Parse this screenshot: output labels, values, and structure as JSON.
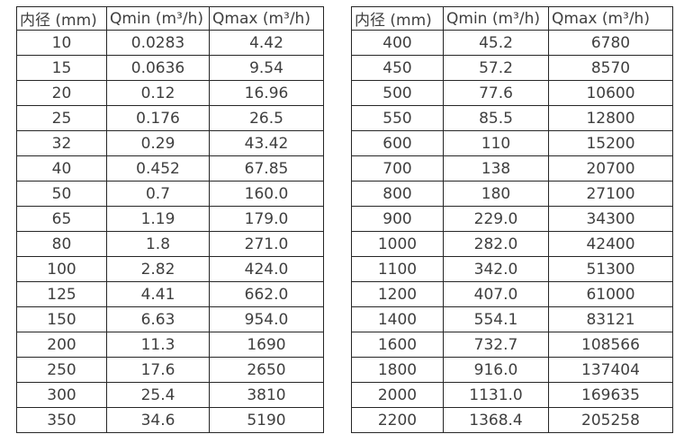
{
  "page": {
    "background": "#ffffff",
    "text_color": "#3f3f3f",
    "border_color": "#262626"
  },
  "tables": [
    {
      "name": "flow-table-small-diameters",
      "headers": [
        "内径 (mm)",
        "Qmin (m³/h)",
        "Qmax (m³/h)"
      ],
      "rows": [
        [
          "10",
          "0.0283",
          "4.42"
        ],
        [
          "15",
          "0.0636",
          "9.54"
        ],
        [
          "20",
          "0.12",
          "16.96"
        ],
        [
          "25",
          "0.176",
          "26.5"
        ],
        [
          "32",
          "0.29",
          "43.42"
        ],
        [
          "40",
          "0.452",
          "67.85"
        ],
        [
          "50",
          "0.7",
          "160.0"
        ],
        [
          "65",
          "1.19",
          "179.0"
        ],
        [
          "80",
          "1.8",
          "271.0"
        ],
        [
          "100",
          "2.82",
          "424.0"
        ],
        [
          "125",
          "4.41",
          "662.0"
        ],
        [
          "150",
          "6.63",
          "954.0"
        ],
        [
          "200",
          "11.3",
          "1690"
        ],
        [
          "250",
          "17.6",
          "2650"
        ],
        [
          "300",
          "25.4",
          "3810"
        ],
        [
          "350",
          "34.6",
          "5190"
        ]
      ]
    },
    {
      "name": "flow-table-large-diameters",
      "headers": [
        "内径 (mm)",
        "Qmin (m³/h)",
        "Qmax (m³/h)"
      ],
      "rows": [
        [
          "400",
          "45.2",
          "6780"
        ],
        [
          "450",
          "57.2",
          "8570"
        ],
        [
          "500",
          "77.6",
          "10600"
        ],
        [
          "550",
          "85.5",
          "12800"
        ],
        [
          "600",
          "110",
          "15200"
        ],
        [
          "700",
          "138",
          "20700"
        ],
        [
          "800",
          "180",
          "27100"
        ],
        [
          "900",
          "229.0",
          "34300"
        ],
        [
          "1000",
          "282.0",
          "42400"
        ],
        [
          "1100",
          "342.0",
          "51300"
        ],
        [
          "1200",
          "407.0",
          "61000"
        ],
        [
          "1400",
          "554.1",
          "83121"
        ],
        [
          "1600",
          "732.7",
          "108566"
        ],
        [
          "1800",
          "916.0",
          "137404"
        ],
        [
          "2000",
          "1131.0",
          "169635"
        ],
        [
          "2200",
          "1368.4",
          "205258"
        ]
      ]
    }
  ]
}
